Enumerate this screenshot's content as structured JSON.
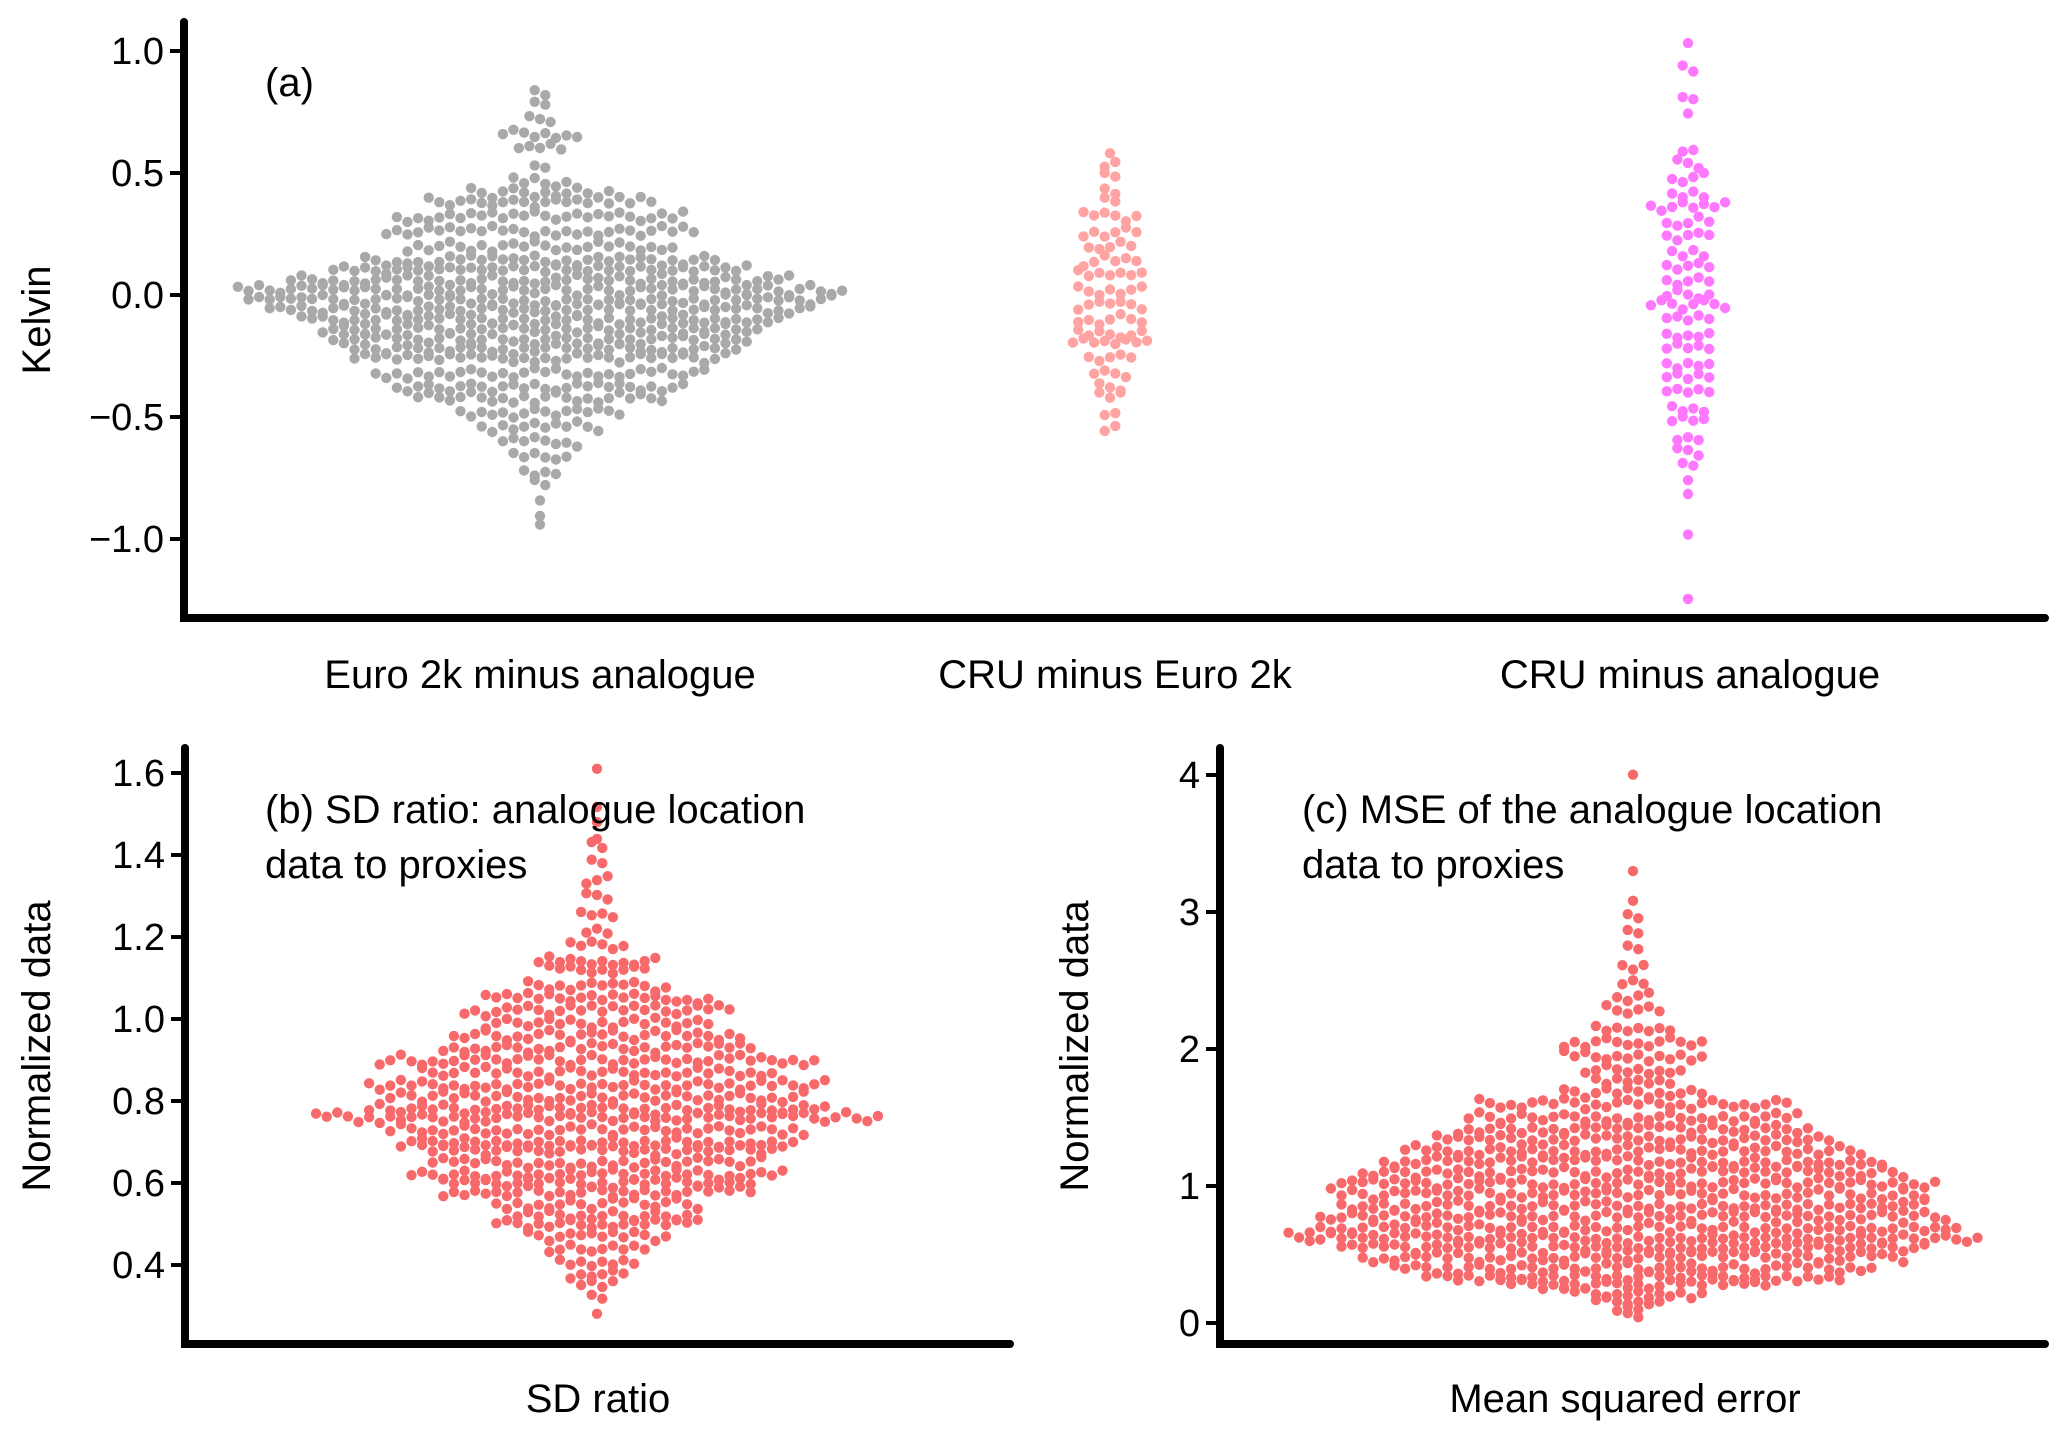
{
  "chart_data": [
    {
      "id": "a",
      "type": "scatter",
      "subtype": "beeswarm",
      "annotation": [
        "(a)"
      ],
      "ylabel": "Kelvin",
      "xlabel": "",
      "ylim": [
        -1.3,
        1.1
      ],
      "yticks": [
        1.0,
        0.5,
        0.0,
        -0.5,
        -1.0
      ],
      "ytick_labels": [
        "1.0",
        "0.5",
        "0.0",
        "−0.5",
        "−1.0"
      ],
      "categories": [
        "Euro 2k minus analogue",
        "CRU minus Euro 2k",
        "CRU minus analogue"
      ],
      "grid": false,
      "series": [
        {
          "name": "Euro 2k minus analogue",
          "color": "#A9A9A9",
          "bins": [
            [
              0.82,
              2
            ],
            [
              0.78,
              2
            ],
            [
              0.72,
              3
            ],
            [
              0.66,
              8
            ],
            [
              0.6,
              5
            ],
            [
              0.52,
              2
            ],
            [
              0.46,
              6
            ],
            [
              0.42,
              14
            ],
            [
              0.38,
              22
            ],
            [
              0.32,
              28
            ],
            [
              0.26,
              30
            ],
            [
              0.2,
              26
            ],
            [
              0.14,
              34
            ],
            [
              0.1,
              40
            ],
            [
              0.06,
              48
            ],
            [
              0.02,
              58
            ],
            [
              -0.02,
              56
            ],
            [
              -0.06,
              52
            ],
            [
              -0.1,
              46
            ],
            [
              -0.14,
              42
            ],
            [
              -0.18,
              40
            ],
            [
              -0.22,
              38
            ],
            [
              -0.26,
              36
            ],
            [
              -0.32,
              32
            ],
            [
              -0.38,
              28
            ],
            [
              -0.42,
              24
            ],
            [
              -0.48,
              16
            ],
            [
              -0.54,
              12
            ],
            [
              -0.6,
              8
            ],
            [
              -0.66,
              6
            ],
            [
              -0.72,
              4
            ],
            [
              -0.78,
              2
            ],
            [
              -0.84,
              1
            ],
            [
              -0.9,
              1
            ],
            [
              -0.94,
              1
            ]
          ]
        },
        {
          "name": "CRU minus Euro 2k",
          "color": "#FFA3A3",
          "bins": [
            [
              0.58,
              1
            ],
            [
              0.54,
              2
            ],
            [
              0.48,
              2
            ],
            [
              0.42,
              2
            ],
            [
              0.38,
              2
            ],
            [
              0.32,
              6
            ],
            [
              0.26,
              6
            ],
            [
              0.2,
              5
            ],
            [
              0.14,
              6
            ],
            [
              0.08,
              7
            ],
            [
              0.02,
              7
            ],
            [
              -0.04,
              7
            ],
            [
              -0.1,
              7
            ],
            [
              -0.16,
              7
            ],
            [
              -0.2,
              8
            ],
            [
              -0.26,
              5
            ],
            [
              -0.32,
              4
            ],
            [
              -0.38,
              3
            ],
            [
              -0.42,
              3
            ],
            [
              -0.48,
              2
            ],
            [
              -0.54,
              2
            ]
          ]
        },
        {
          "name": "CRU minus analogue",
          "color": "#FF77FF",
          "bins": [
            [
              1.03,
              1
            ],
            [
              0.92,
              2
            ],
            [
              0.8,
              2
            ],
            [
              0.74,
              1
            ],
            [
              0.6,
              2
            ],
            [
              0.54,
              3
            ],
            [
              0.48,
              4
            ],
            [
              0.42,
              4
            ],
            [
              0.36,
              8
            ],
            [
              0.3,
              5
            ],
            [
              0.24,
              5
            ],
            [
              0.18,
              4
            ],
            [
              0.12,
              5
            ],
            [
              0.06,
              5
            ],
            [
              0.0,
              5
            ],
            [
              -0.04,
              8
            ],
            [
              -0.1,
              5
            ],
            [
              -0.16,
              5
            ],
            [
              -0.22,
              5
            ],
            [
              -0.28,
              5
            ],
            [
              -0.34,
              5
            ],
            [
              -0.4,
              5
            ],
            [
              -0.46,
              4
            ],
            [
              -0.52,
              4
            ],
            [
              -0.58,
              3
            ],
            [
              -0.64,
              3
            ],
            [
              -0.7,
              2
            ],
            [
              -0.76,
              1
            ],
            [
              -0.82,
              1
            ],
            [
              -0.98,
              1
            ],
            [
              -1.25,
              1
            ]
          ]
        }
      ]
    },
    {
      "id": "b",
      "type": "scatter",
      "subtype": "beeswarm",
      "annotation": [
        "(b) SD ratio: analogue location",
        "data to proxies"
      ],
      "ylabel": "Normalized data",
      "xlabel": "SD ratio",
      "ylim": [
        0.25,
        1.7
      ],
      "yticks": [
        1.6,
        1.4,
        1.2,
        1.0,
        0.8,
        0.6,
        0.4
      ],
      "ytick_labels": [
        "1.6",
        "1.4",
        "1.2",
        "1.0",
        "0.8",
        "0.6",
        "0.4"
      ],
      "grid": false,
      "series": [
        {
          "name": "SD ratio",
          "color": "#F8696B",
          "bins": [
            [
              1.61,
              1
            ],
            [
              1.52,
              1
            ],
            [
              1.48,
              1
            ],
            [
              1.44,
              1
            ],
            [
              1.42,
              2
            ],
            [
              1.38,
              2
            ],
            [
              1.34,
              3
            ],
            [
              1.3,
              3
            ],
            [
              1.26,
              4
            ],
            [
              1.22,
              3
            ],
            [
              1.18,
              6
            ],
            [
              1.14,
              12
            ],
            [
              1.12,
              10
            ],
            [
              1.08,
              14
            ],
            [
              1.05,
              22
            ],
            [
              1.02,
              26
            ],
            [
              0.99,
              22
            ],
            [
              0.96,
              28
            ],
            [
              0.93,
              30
            ],
            [
              0.9,
              42
            ],
            [
              0.87,
              34
            ],
            [
              0.84,
              44
            ],
            [
              0.81,
              40
            ],
            [
              0.78,
              44
            ],
            [
              0.76,
              54
            ],
            [
              0.73,
              40
            ],
            [
              0.7,
              38
            ],
            [
              0.68,
              34
            ],
            [
              0.65,
              32
            ],
            [
              0.62,
              36
            ],
            [
              0.6,
              30
            ],
            [
              0.58,
              30
            ],
            [
              0.55,
              20
            ],
            [
              0.52,
              18
            ],
            [
              0.5,
              20
            ],
            [
              0.47,
              14
            ],
            [
              0.44,
              10
            ],
            [
              0.41,
              8
            ],
            [
              0.38,
              6
            ],
            [
              0.35,
              4
            ],
            [
              0.32,
              2
            ],
            [
              0.28,
              1
            ]
          ]
        }
      ]
    },
    {
      "id": "c",
      "type": "scatter",
      "subtype": "beeswarm",
      "annotation": [
        "(c) MSE of the analogue location",
        "data to proxies"
      ],
      "ylabel": "Normalized data",
      "xlabel": "Mean squared error",
      "ylim": [
        -0.15,
        4.2
      ],
      "yticks": [
        4,
        3,
        2,
        1,
        0
      ],
      "ytick_labels": [
        "4",
        "3",
        "2",
        "1",
        "0"
      ],
      "grid": false,
      "series": [
        {
          "name": "Mean squared error",
          "color": "#F8696B",
          "bins": [
            [
              4.0,
              1
            ],
            [
              3.3,
              1
            ],
            [
              3.08,
              1
            ],
            [
              2.95,
              2
            ],
            [
              2.85,
              2
            ],
            [
              2.72,
              2
            ],
            [
              2.58,
              3
            ],
            [
              2.5,
              3
            ],
            [
              2.38,
              4
            ],
            [
              2.28,
              6
            ],
            [
              2.16,
              8
            ],
            [
              2.05,
              14
            ],
            [
              1.95,
              14
            ],
            [
              1.85,
              10
            ],
            [
              1.78,
              8
            ],
            [
              1.68,
              14
            ],
            [
              1.6,
              30
            ],
            [
              1.5,
              32
            ],
            [
              1.42,
              34
            ],
            [
              1.34,
              38
            ],
            [
              1.26,
              44
            ],
            [
              1.18,
              48
            ],
            [
              1.1,
              52
            ],
            [
              1.02,
              58
            ],
            [
              0.94,
              56
            ],
            [
              0.86,
              56
            ],
            [
              0.78,
              60
            ],
            [
              0.7,
              62
            ],
            [
              0.62,
              66
            ],
            [
              0.55,
              56
            ],
            [
              0.48,
              52
            ],
            [
              0.4,
              46
            ],
            [
              0.34,
              40
            ],
            [
              0.28,
              26
            ],
            [
              0.22,
              14
            ],
            [
              0.16,
              8
            ],
            [
              0.1,
              4
            ],
            [
              0.05,
              2
            ]
          ]
        }
      ]
    }
  ]
}
